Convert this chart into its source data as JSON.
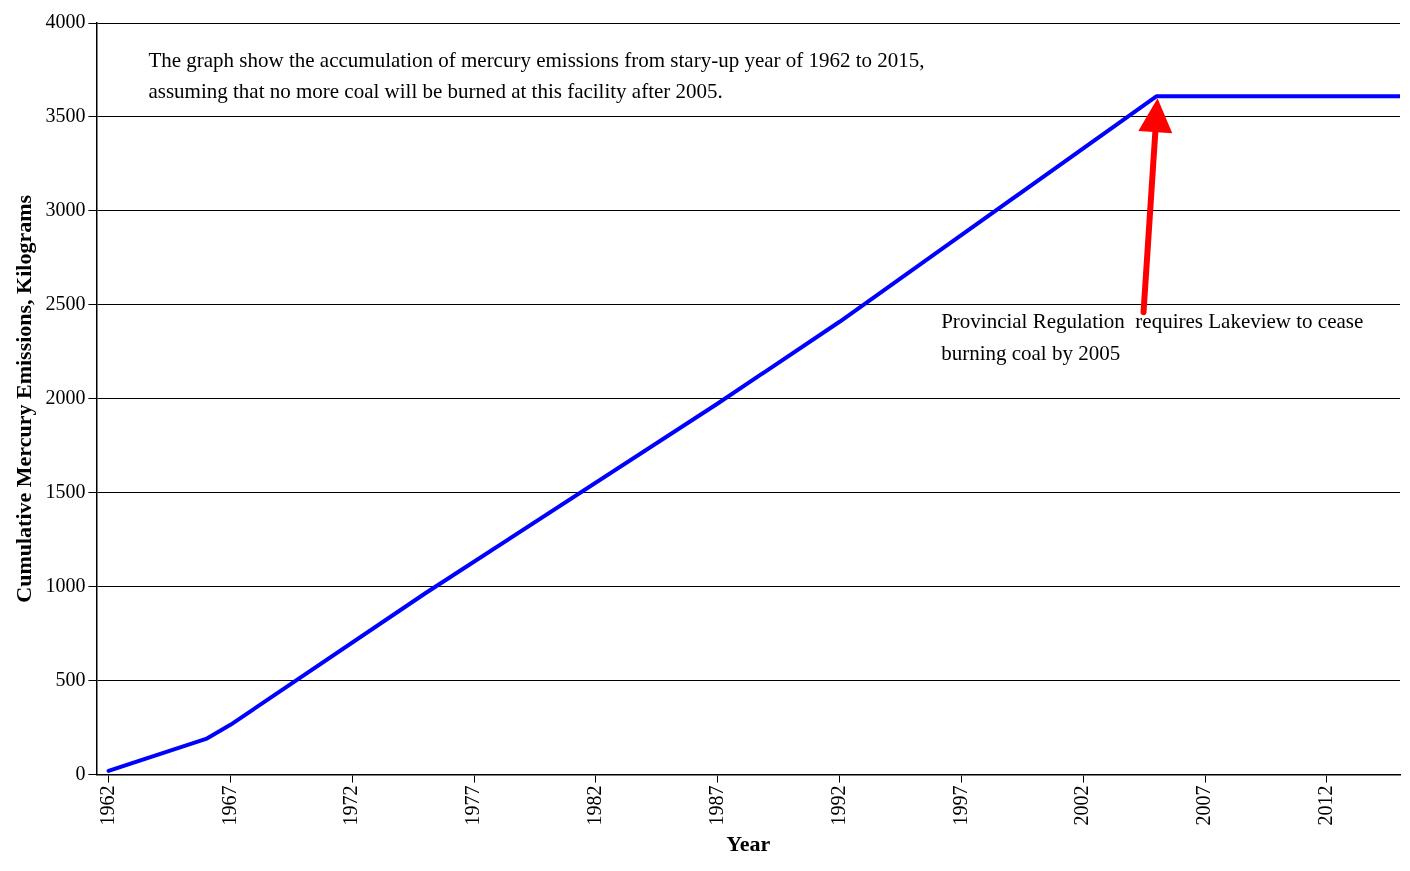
{
  "chart_data": {
    "type": "line",
    "xlabel": "Year",
    "ylabel": "Cumulative Mercury Emissions, Kilograms",
    "x": [
      1962,
      1966,
      1967,
      1975,
      1987,
      1992,
      2005,
      2015
    ],
    "series": [
      {
        "color": "#0000ff",
        "values": [
          20,
          190,
          265,
          965,
          1975,
          2410,
          3610,
          3610
        ]
      }
    ],
    "xlim": [
      1961.5,
      2015
    ],
    "xticks": [
      1962,
      1967,
      1972,
      1977,
      1982,
      1987,
      1992,
      1997,
      2002,
      2007,
      2012
    ],
    "ylim": [
      0,
      4000
    ],
    "yticks": [
      0,
      500,
      1000,
      1500,
      2000,
      2500,
      3000,
      3500,
      4000
    ],
    "grid": "y",
    "legend": false,
    "marker": "none",
    "line_style": "solid",
    "annotations": [
      "The graph show the accumulation of mercury emissions from stary-up year of 1962 to 2015, assuming that no more coal will be burned at this facility after 2005.",
      "Provincial Regulation  requires Lakeview to cease burning coal by 2005"
    ]
  }
}
